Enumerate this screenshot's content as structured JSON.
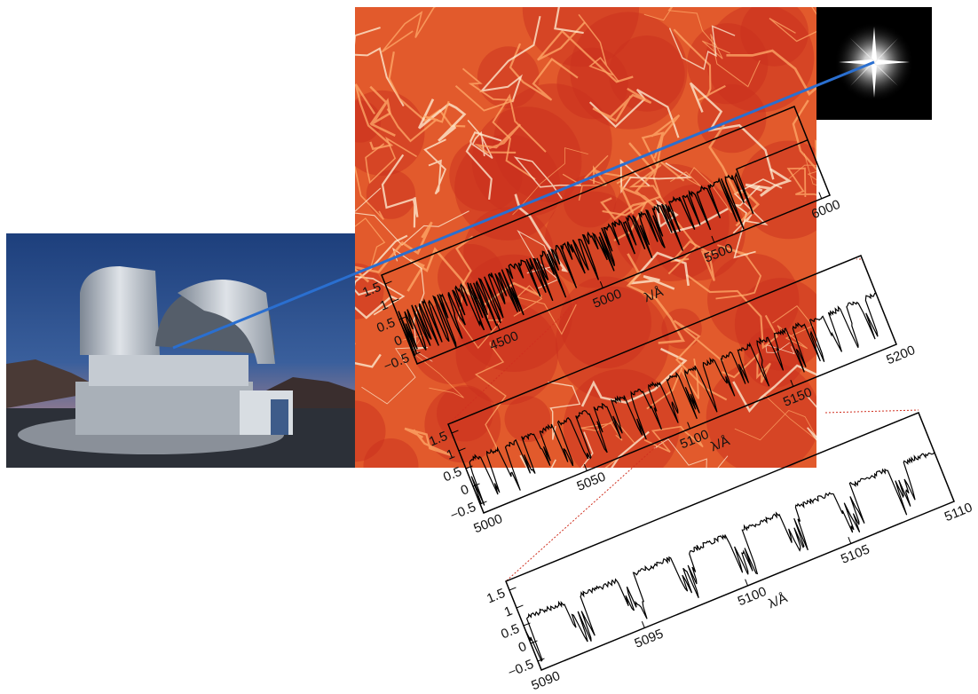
{
  "panels": [
    {
      "ylabels": [
        "1.5",
        "1",
        "0.5",
        "0",
        "−0.5"
      ],
      "xlabels": [
        "4500",
        "5000",
        "5500",
        "6000"
      ],
      "xlabel": "λ/Å"
    },
    {
      "ylabels": [
        "1.5",
        "1",
        "0.5",
        "0",
        "−0.5"
      ],
      "xlabels": [
        "5000",
        "5050",
        "5100",
        "5150",
        "5200"
      ],
      "xlabel": "λ/Å"
    },
    {
      "ylabels": [
        "1.5",
        "1",
        "0.5",
        "0",
        "−0.5"
      ],
      "xlabels": [
        "5090",
        "5095",
        "5100",
        "5105",
        "5110"
      ],
      "xlabel": "λ/Å"
    }
  ]
}
